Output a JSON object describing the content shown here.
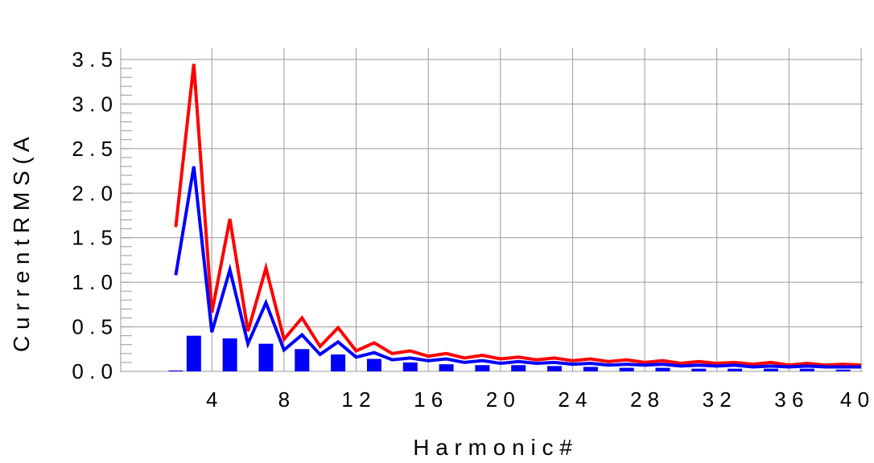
{
  "chart_data": {
    "type": "line",
    "title": "",
    "xlabel": "H a r m o n i c  #",
    "ylabel": "C u r r e n t  R M S  ( A",
    "xlim": [
      0,
      40
    ],
    "ylim": [
      0,
      3.5
    ],
    "grid": true,
    "x_ticks": [
      4,
      8,
      12,
      16,
      20,
      24,
      28,
      32,
      36,
      40
    ],
    "x_tick_labels": [
      "4",
      "8",
      "1 2",
      "1 6",
      "2 0",
      "2 4",
      "2 8",
      "3 2",
      "3 6",
      "4 0"
    ],
    "y_ticks": [
      0,
      0.5,
      1.0,
      1.5,
      2.0,
      2.5,
      3.0,
      3.5
    ],
    "y_tick_labels": [
      "0 . 0",
      "0 . 5",
      "1 . 0",
      "1 . 5",
      "2 . 0",
      "2 . 5",
      "3 . 0",
      "3 . 5"
    ],
    "colors": {
      "upper": "#ff0000",
      "lower": "#0000ff",
      "bars": "#0000ff",
      "grid": "#999999"
    },
    "series": [
      {
        "style": "line",
        "color": "#ff0000",
        "x": [
          2,
          3,
          4,
          5,
          6,
          7,
          8,
          9,
          10,
          11,
          12,
          13,
          14,
          15,
          16,
          17,
          18,
          19,
          20,
          21,
          22,
          23,
          24,
          25,
          26,
          27,
          28,
          29,
          30,
          31,
          32,
          33,
          34,
          35,
          36,
          37,
          38,
          39,
          40
        ],
        "values": [
          1.62,
          3.45,
          0.66,
          1.71,
          0.45,
          1.16,
          0.36,
          0.6,
          0.28,
          0.49,
          0.23,
          0.32,
          0.2,
          0.23,
          0.17,
          0.2,
          0.15,
          0.18,
          0.14,
          0.16,
          0.13,
          0.15,
          0.12,
          0.14,
          0.11,
          0.13,
          0.1,
          0.12,
          0.09,
          0.11,
          0.09,
          0.1,
          0.08,
          0.1,
          0.07,
          0.09,
          0.07,
          0.08,
          0.07
        ]
      },
      {
        "style": "line",
        "color": "#0000ff",
        "x": [
          2,
          3,
          4,
          5,
          6,
          7,
          8,
          9,
          10,
          11,
          12,
          13,
          14,
          15,
          16,
          17,
          18,
          19,
          20,
          21,
          22,
          23,
          24,
          25,
          26,
          27,
          28,
          29,
          30,
          31,
          32,
          33,
          34,
          35,
          36,
          37,
          38,
          39,
          40
        ],
        "values": [
          1.08,
          2.3,
          0.44,
          1.14,
          0.31,
          0.77,
          0.24,
          0.41,
          0.19,
          0.33,
          0.16,
          0.21,
          0.13,
          0.15,
          0.12,
          0.14,
          0.1,
          0.12,
          0.09,
          0.11,
          0.09,
          0.1,
          0.08,
          0.09,
          0.07,
          0.08,
          0.07,
          0.08,
          0.06,
          0.07,
          0.06,
          0.07,
          0.05,
          0.06,
          0.05,
          0.06,
          0.05,
          0.05,
          0.05
        ]
      },
      {
        "style": "bar",
        "color": "#0000ff",
        "x": [
          2,
          3,
          5,
          7,
          9,
          11,
          13,
          15,
          17,
          19,
          21,
          23,
          25,
          27,
          29,
          31,
          33,
          35,
          37,
          39
        ],
        "values": [
          0.01,
          0.4,
          0.37,
          0.31,
          0.25,
          0.19,
          0.14,
          0.1,
          0.08,
          0.07,
          0.07,
          0.06,
          0.05,
          0.04,
          0.04,
          0.03,
          0.03,
          0.03,
          0.03,
          0.02
        ]
      }
    ]
  }
}
